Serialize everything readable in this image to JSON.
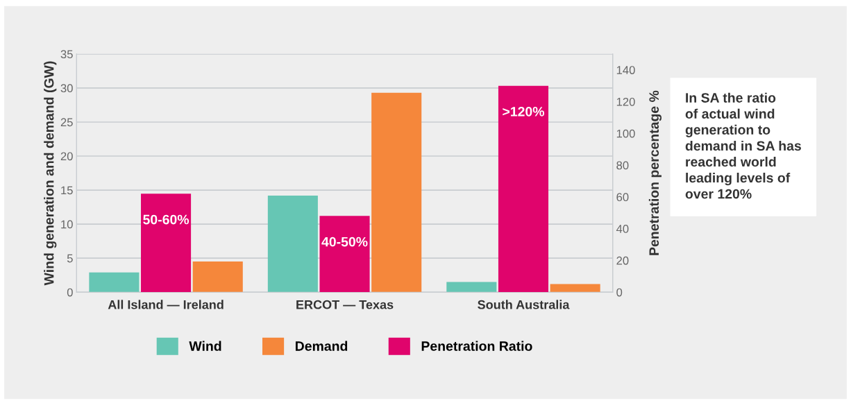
{
  "chart_data": {
    "type": "bar",
    "categories": [
      "All Island — Ireland",
      "ERCOT — Texas",
      "South Australia"
    ],
    "ylabel": "Wind generation and demand (GW)",
    "y2label": "Penetration percentage %",
    "ylim": [
      0,
      35
    ],
    "yticks": [
      0,
      5,
      10,
      15,
      20,
      25,
      30,
      35
    ],
    "y2lim": [
      0,
      150
    ],
    "y2ticks": [
      0,
      20,
      40,
      60,
      80,
      100,
      120,
      140
    ],
    "grid": "y",
    "legend": "bottom",
    "series": [
      {
        "name": "Wind",
        "color": "#66c6b4",
        "values": [
          2.9,
          14.2,
          1.5
        ]
      },
      {
        "name": "Demand",
        "color": "#f5873b",
        "values": [
          4.5,
          29.3,
          1.2
        ]
      },
      {
        "name": "Penetration Ratio",
        "color": "#e0046c",
        "axis": "y2",
        "values": [
          62,
          48,
          130
        ]
      }
    ],
    "annotations": [
      "50-60%",
      "40-50%",
      ">120%",
      "In SA the ratio\nof actual wind\ngeneration to\ndemand in SA has\nreached world\nleading levels of\nover 120%"
    ]
  }
}
